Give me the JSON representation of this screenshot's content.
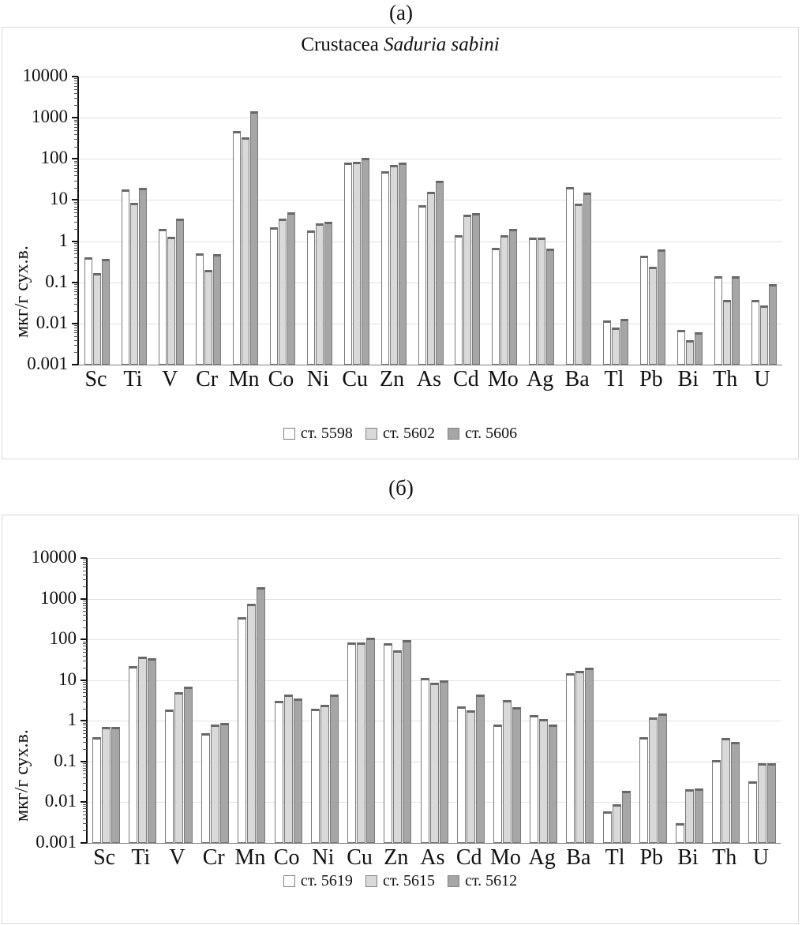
{
  "panels": [
    {
      "label": "(а)"
    },
    {
      "label": "(б)"
    }
  ],
  "chart_data": [
    {
      "type": "bar",
      "title_prefix": "Crustacea ",
      "title_italic": "Saduria sabini",
      "ylabel": "мкг/г сух.в.",
      "log_scale": true,
      "ylim": [
        0.001,
        10000
      ],
      "yticks": [
        "10000",
        "1000",
        "100",
        "10",
        "1",
        "0.1",
        "0.01",
        "0.001"
      ],
      "grid": true,
      "legend_position": "bottom",
      "error_caps": true,
      "categories": [
        "Sc",
        "Ti",
        "V",
        "Cr",
        "Mn",
        "Co",
        "Ni",
        "Cu",
        "Zn",
        "As",
        "Cd",
        "Mo",
        "Ag",
        "Ba",
        "Tl",
        "Pb",
        "Bi",
        "Th",
        "U"
      ],
      "colors": [
        "#ffffff",
        "#d9d9d9",
        "#a6a6a6"
      ],
      "series": [
        {
          "name": "ст. 5598",
          "values": [
            0.4,
            18,
            2.0,
            0.5,
            470,
            2.2,
            1.8,
            80,
            50,
            7.5,
            1.4,
            0.7,
            1.2,
            21,
            0.012,
            0.45,
            0.007,
            0.14,
            0.037
          ]
        },
        {
          "name": "ст. 5602",
          "values": [
            0.17,
            8.5,
            1.3,
            0.2,
            340,
            3.5,
            2.7,
            85,
            70,
            16,
            4.5,
            1.4,
            1.2,
            8.0,
            0.008,
            0.24,
            0.004,
            0.037,
            0.028
          ]
        },
        {
          "name": "ст. 5606",
          "values": [
            0.37,
            20,
            3.5,
            0.48,
            1450,
            5.0,
            2.9,
            105,
            80,
            30,
            4.8,
            2.0,
            0.65,
            15,
            0.013,
            0.62,
            0.006,
            0.14,
            0.09
          ]
        }
      ]
    },
    {
      "type": "bar",
      "title_prefix": "",
      "title_italic": "",
      "ylabel": "мкг/г сух.в.",
      "log_scale": true,
      "ylim": [
        0.001,
        10000
      ],
      "yticks": [
        "10000",
        "1000",
        "100",
        "10",
        "1",
        "0.1",
        "0.01",
        "0.001"
      ],
      "grid": true,
      "legend_position": "bottom",
      "error_caps": true,
      "categories": [
        "Sc",
        "Ti",
        "V",
        "Cr",
        "Mn",
        "Co",
        "Ni",
        "Cu",
        "Zn",
        "As",
        "Cd",
        "Mo",
        "Ag",
        "Ba",
        "Tl",
        "Pb",
        "Bi",
        "Th",
        "U"
      ],
      "colors": [
        "#ffffff",
        "#d9d9d9",
        "#a6a6a6"
      ],
      "series": [
        {
          "name": "ст. 5619",
          "values": [
            0.4,
            22,
            1.9,
            0.5,
            350,
            3.1,
            2.0,
            85,
            80,
            11.5,
            2.3,
            0.8,
            1.4,
            15,
            0.006,
            0.4,
            0.003,
            0.11,
            0.032
          ]
        },
        {
          "name": "ст. 5615",
          "values": [
            0.7,
            38,
            5.0,
            0.8,
            750,
            4.5,
            2.5,
            85,
            55,
            8.5,
            1.8,
            3.2,
            1.1,
            17,
            0.009,
            1.2,
            0.021,
            0.38,
            0.09
          ]
        },
        {
          "name": "ст. 5612",
          "values": [
            0.7,
            35,
            7.0,
            0.9,
            1900,
            3.6,
            4.5,
            108,
            95,
            10,
            4.5,
            2.2,
            0.8,
            20,
            0.019,
            1.5,
            0.022,
            0.3,
            0.09
          ]
        }
      ]
    }
  ]
}
